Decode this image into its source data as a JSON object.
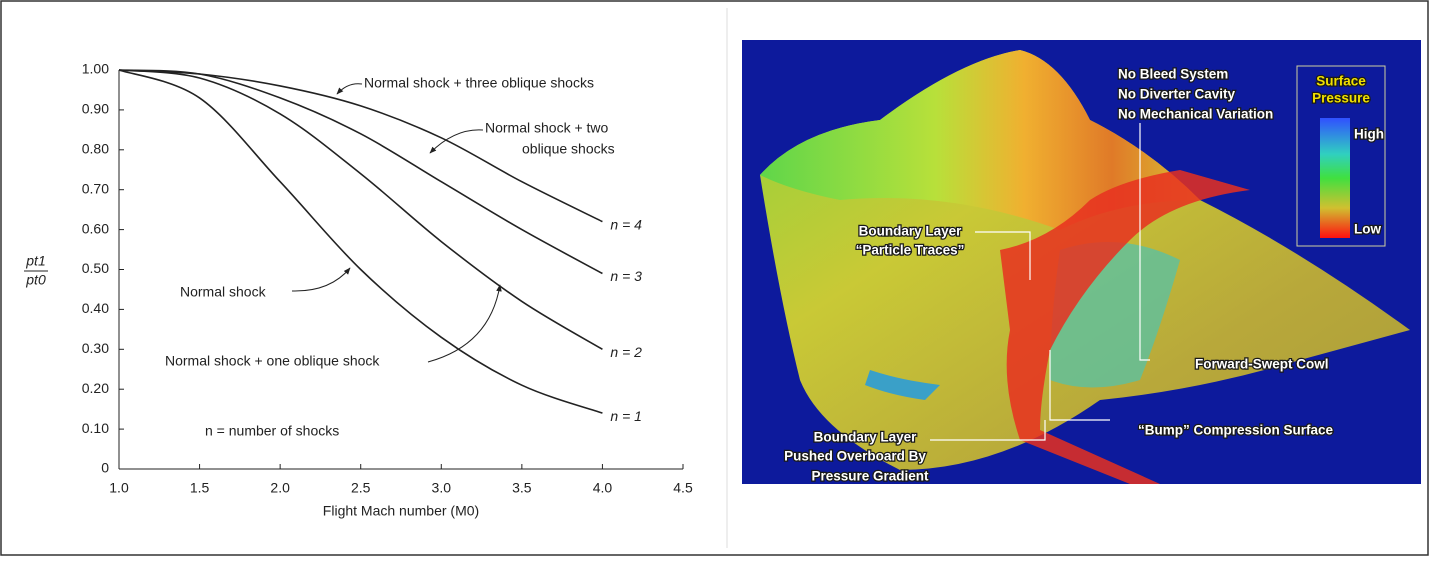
{
  "chart_data": {
    "type": "line",
    "ylabel": {
      "numerator": "pt1",
      "denominator": "pt0"
    },
    "xlabel": "Flight Mach number (M0)",
    "x": [
      1.0,
      1.5,
      2.0,
      2.5,
      3.0,
      3.5,
      4.0
    ],
    "series": [
      {
        "name": "n = 1",
        "color": "#222222",
        "values": [
          1.0,
          0.93,
          0.72,
          0.5,
          0.33,
          0.21,
          0.14
        ]
      },
      {
        "name": "n = 2",
        "color": "#222222",
        "values": [
          1.0,
          0.98,
          0.89,
          0.74,
          0.57,
          0.42,
          0.3
        ]
      },
      {
        "name": "n = 3",
        "color": "#222222",
        "values": [
          1.0,
          0.99,
          0.93,
          0.84,
          0.72,
          0.6,
          0.49
        ]
      },
      {
        "name": "n = 4",
        "color": "#222222",
        "values": [
          1.0,
          0.99,
          0.96,
          0.91,
          0.83,
          0.72,
          0.62
        ]
      }
    ],
    "xlim": [
      1.0,
      4.5
    ],
    "xticks": [
      {
        "value": 1,
        "label": "1.0"
      },
      1.5,
      {
        "value": 2,
        "label": "2.0"
      },
      2.5,
      {
        "value": 3,
        "label": "3.0"
      },
      3.5,
      {
        "value": 4,
        "label": "4.0"
      },
      4.5
    ],
    "ylim": [
      0,
      1.0
    ],
    "yticks": [
      0,
      {
        "value": 0.1,
        "label": "0.10"
      },
      {
        "value": 0.2,
        "label": "0.20"
      },
      {
        "value": 0.3,
        "label": "0.30"
      },
      {
        "value": 0.4,
        "label": "0.40"
      },
      {
        "value": 0.5,
        "label": "0.50"
      },
      {
        "value": 0.6,
        "label": "0.60"
      },
      {
        "value": 0.7,
        "label": "0.70"
      },
      {
        "value": 0.8,
        "label": "0.80"
      },
      {
        "value": 0.9,
        "label": "0.90"
      },
      {
        "value": 1,
        "label": "1.00"
      }
    ],
    "grid": false,
    "annotations": [
      "Normal shock + three oblique shocks",
      "Normal shock + two",
      "oblique shocks",
      "Normal shock",
      "Normal shock + one oblique shock",
      "n = number of shocks"
    ]
  },
  "image": {
    "labels": [
      "No Bleed System",
      "No Diverter Cavity",
      "No Mechanical Variation",
      "Boundary Layer",
      "“Particle Traces”",
      "Forward-Swept Cowl",
      "“Bump” Compression Surface",
      "Boundary Layer",
      "Pushed Overboard By",
      "Pressure Gradient"
    ],
    "legend": {
      "title": [
        "Surface",
        "Pressure"
      ],
      "high": "High",
      "low": "Low"
    }
  }
}
